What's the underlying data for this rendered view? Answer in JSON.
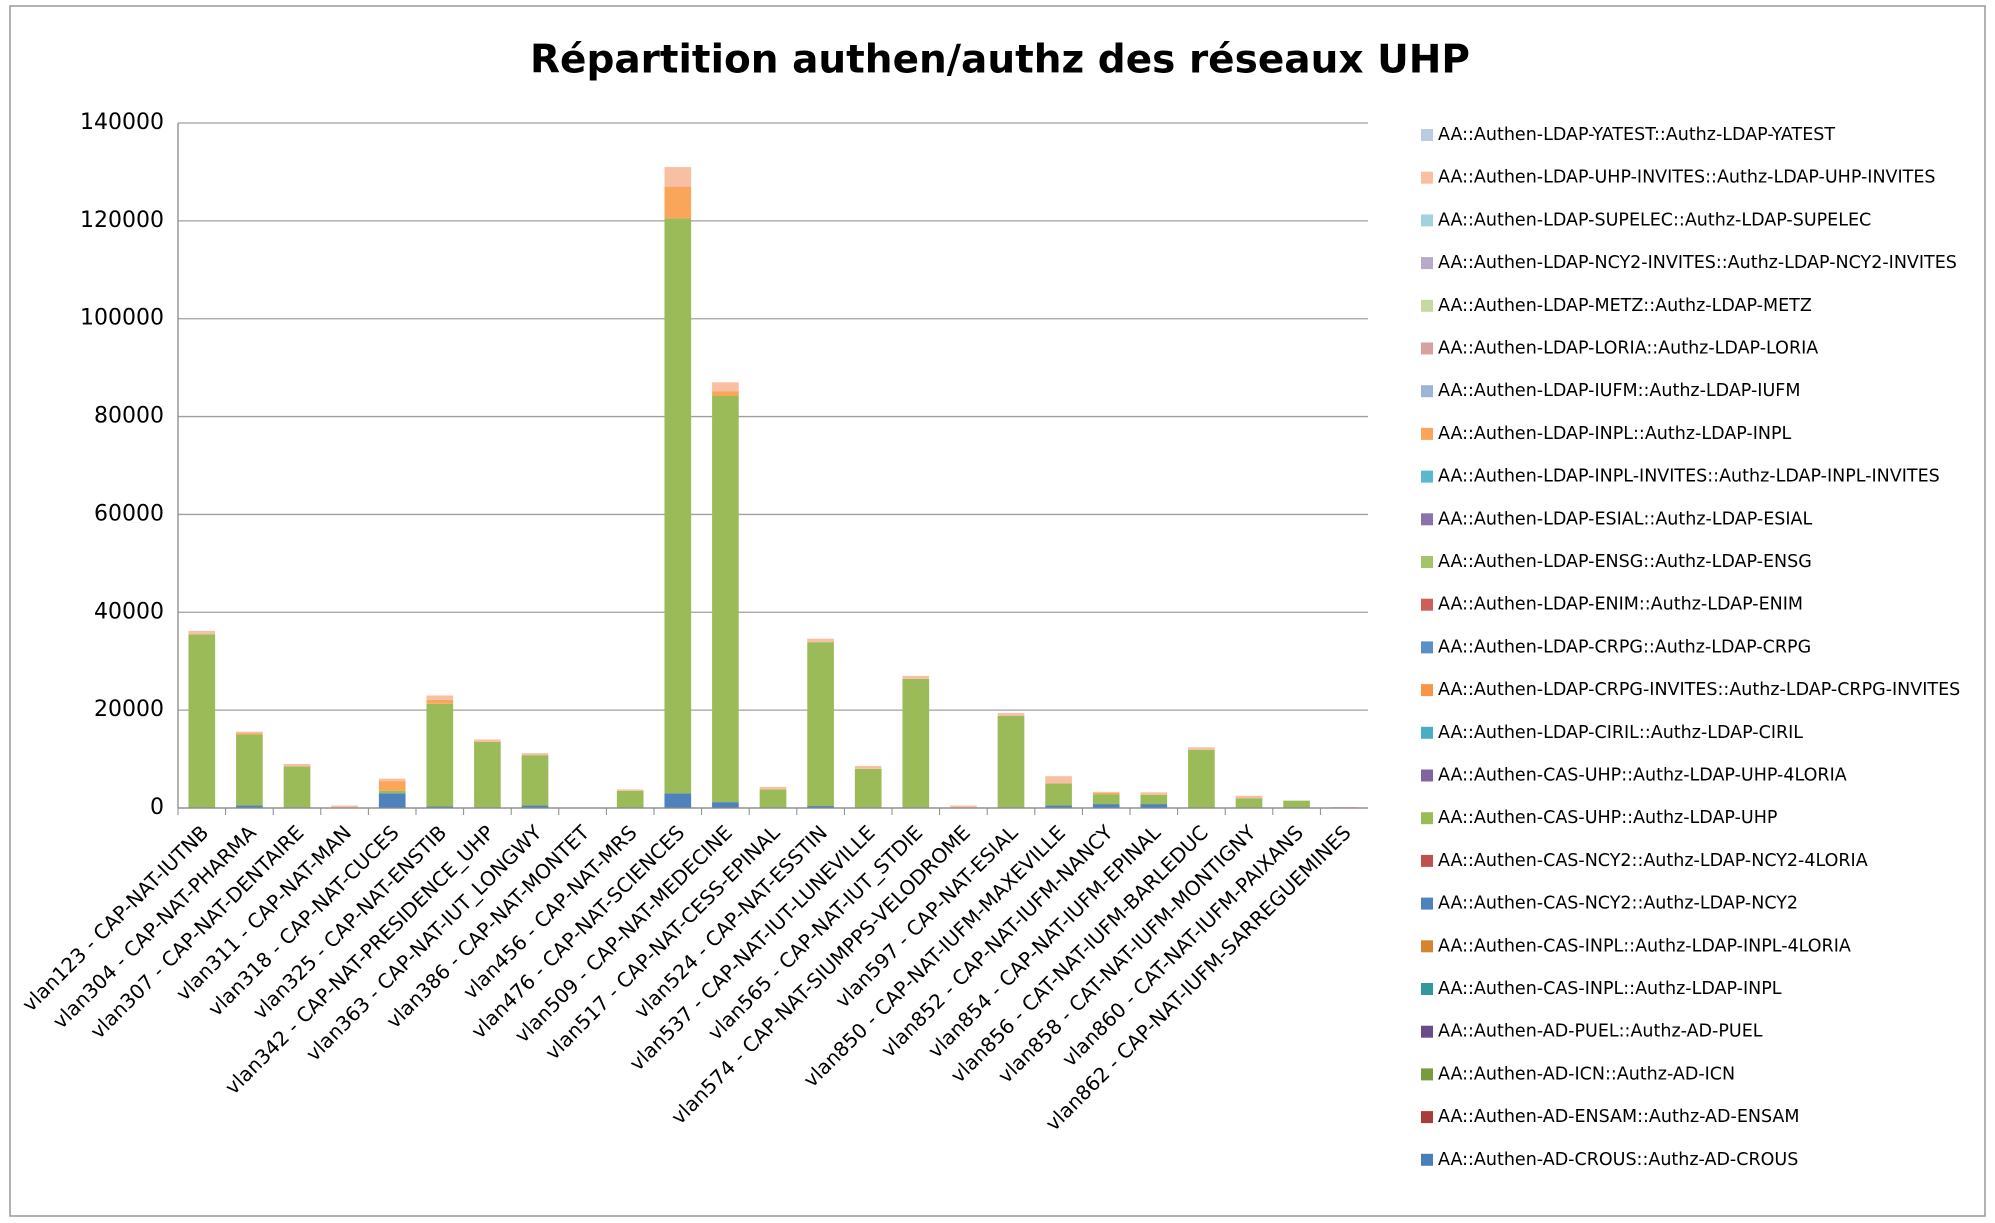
{
  "chart_data": {
    "type": "stacked_bar",
    "title": "Répartition authen/authz des réseaux UHP",
    "categories": [
      "vlan123 - CAP-NAT-IUTNB",
      "vlan304 - CAP-NAT-PHARMA",
      "vlan307 - CAP-NAT-DENTAIRE",
      "vlan311 - CAP-NAT-MAN",
      "vlan318 - CAP-NAT-CUCES",
      "vlan325 - CAP-NAT-ENSTIB",
      "vlan342 - CAP-NAT-PRESIDENCE_UHP",
      "vlan363 - CAP-NAT-IUT_LONGWY",
      "vlan386 - CAP-NAT-MONTET",
      "vlan456 - CAP-NAT-MRS",
      "vlan476 - CAP-NAT-SCIENCES",
      "vlan509 - CAP-NAT-MEDECINE",
      "vlan517 - CAP-NAT-CESS-EPINAL",
      "vlan524 - CAP-NAT-ESSTIN",
      "vlan537 - CAP-NAT-IUT-LUNEVILLE",
      "vlan565 - CAP-NAT-IUT_STDIE",
      "vlan574 - CAP-NAT-SIUMPPS-VELODROME",
      "vlan597 - CAP-NAT-ESIAL",
      "vlan850 - CAP-NAT-IUFM-MAXEVILLE",
      "vlan852 - CAP-NAT-IUFM-NANCY",
      "vlan854 - CAP-NAT-IUFM-EPINAL",
      "vlan856 - CAT-NAT-IUFM-BARLEDUC",
      "vlan858 - CAT-NAT-IUFM-MONTIGNY",
      "vlan860 - CAT-NAT-IUFM-PAIXANS",
      "vlan862 - CAP-NAT-IUFM-SARREGUEMINES"
    ],
    "ylim": [
      0,
      140000
    ],
    "yticks": [
      0,
      20000,
      40000,
      60000,
      80000,
      100000,
      120000,
      140000
    ],
    "grid": true,
    "series": [
      {
        "name": "AA::Authen-AD-CROUS::Authz-AD-CROUS",
        "color": "#4a7ebb",
        "values": [
          0,
          0,
          0,
          0,
          0,
          0,
          0,
          0,
          0,
          0,
          0,
          0,
          0,
          0,
          0,
          0,
          0,
          0,
          0,
          0,
          0,
          0,
          0,
          0,
          0
        ]
      },
      {
        "name": "AA::Authen-AD-ENSAM::Authz-AD-ENSAM",
        "color": "#a83c3a",
        "values": [
          0,
          0,
          0,
          0,
          0,
          0,
          0,
          0,
          0,
          0,
          0,
          0,
          0,
          0,
          0,
          0,
          0,
          0,
          0,
          0,
          0,
          0,
          0,
          0,
          0
        ]
      },
      {
        "name": "AA::Authen-AD-ICN::Authz-AD-ICN",
        "color": "#7a9a3e",
        "values": [
          0,
          0,
          0,
          0,
          0,
          0,
          0,
          0,
          0,
          0,
          0,
          0,
          0,
          0,
          0,
          0,
          0,
          0,
          0,
          0,
          0,
          0,
          0,
          0,
          0
        ]
      },
      {
        "name": "AA::Authen-AD-PUEL::Authz-AD-PUEL",
        "color": "#6a4c8c",
        "values": [
          0,
          0,
          0,
          0,
          0,
          0,
          0,
          0,
          0,
          0,
          0,
          0,
          0,
          0,
          0,
          0,
          0,
          0,
          0,
          0,
          0,
          0,
          0,
          0,
          0
        ]
      },
      {
        "name": "AA::Authen-CAS-INPL::Authz-LDAP-INPL",
        "color": "#36969e",
        "values": [
          0,
          0,
          0,
          0,
          0,
          0,
          0,
          0,
          0,
          0,
          0,
          0,
          0,
          0,
          0,
          0,
          0,
          0,
          0,
          0,
          0,
          0,
          0,
          0,
          0
        ]
      },
      {
        "name": "AA::Authen-CAS-INPL::Authz-LDAP-INPL-4LORIA",
        "color": "#d58532",
        "values": [
          0,
          0,
          0,
          0,
          0,
          0,
          0,
          0,
          0,
          0,
          0,
          0,
          0,
          0,
          0,
          0,
          0,
          0,
          0,
          0,
          0,
          0,
          0,
          0,
          0
        ]
      },
      {
        "name": "AA::Authen-CAS-NCY2::Authz-LDAP-NCY2",
        "color": "#4f81bd",
        "values": [
          0,
          500,
          0,
          0,
          3000,
          300,
          0,
          500,
          0,
          0,
          3000,
          1200,
          0,
          400,
          0,
          0,
          0,
          0,
          500,
          800,
          800,
          0,
          0,
          0,
          0
        ]
      },
      {
        "name": "AA::Authen-CAS-NCY2::Authz-LDAP-NCY2-4LORIA",
        "color": "#c0504d",
        "values": [
          0,
          0,
          0,
          0,
          0,
          0,
          0,
          0,
          0,
          0,
          0,
          0,
          0,
          0,
          0,
          0,
          0,
          0,
          0,
          0,
          0,
          0,
          0,
          0,
          0
        ]
      },
      {
        "name": "AA::Authen-CAS-UHP::Authz-LDAP-UHP",
        "color": "#9bbb59",
        "values": [
          35500,
          14500,
          8500,
          0,
          500,
          21000,
          13500,
          10300,
          0,
          3500,
          117500,
          83000,
          3800,
          33500,
          8000,
          26400,
          0,
          18800,
          4500,
          2000,
          1900,
          11900,
          2000,
          1500,
          0
        ]
      },
      {
        "name": "AA::Authen-CAS-UHP::Authz-LDAP-UHP-4LORIA",
        "color": "#8064a2",
        "values": [
          0,
          0,
          0,
          0,
          0,
          0,
          0,
          0,
          0,
          0,
          0,
          0,
          0,
          0,
          0,
          0,
          0,
          0,
          0,
          0,
          0,
          0,
          0,
          0,
          0
        ]
      },
      {
        "name": "AA::Authen-LDAP-CIRIL::Authz-LDAP-CIRIL",
        "color": "#4bacc6",
        "values": [
          0,
          0,
          0,
          0,
          0,
          0,
          0,
          0,
          0,
          0,
          0,
          0,
          0,
          0,
          0,
          0,
          0,
          0,
          0,
          0,
          0,
          0,
          0,
          0,
          0
        ]
      },
      {
        "name": "AA::Authen-LDAP-CRPG-INVITES::Authz-LDAP-CRPG-INVITES",
        "color": "#f79646",
        "values": [
          0,
          0,
          0,
          0,
          0,
          0,
          0,
          0,
          0,
          0,
          0,
          0,
          0,
          0,
          0,
          0,
          0,
          0,
          0,
          0,
          0,
          0,
          0,
          0,
          0
        ]
      },
      {
        "name": "AA::Authen-LDAP-CRPG::Authz-LDAP-CRPG",
        "color": "#5b8fc9",
        "values": [
          0,
          0,
          0,
          0,
          0,
          0,
          0,
          0,
          0,
          0,
          0,
          0,
          0,
          0,
          0,
          0,
          0,
          0,
          0,
          0,
          0,
          0,
          0,
          0,
          0
        ]
      },
      {
        "name": "AA::Authen-LDAP-ENIM::Authz-LDAP-ENIM",
        "color": "#cd5e5b",
        "values": [
          0,
          0,
          0,
          0,
          0,
          0,
          0,
          0,
          0,
          0,
          0,
          0,
          0,
          0,
          0,
          0,
          0,
          0,
          0,
          0,
          0,
          0,
          0,
          0,
          0
        ]
      },
      {
        "name": "AA::Authen-LDAP-ENSG::Authz-LDAP-ENSG",
        "color": "#a5c46a",
        "values": [
          0,
          0,
          0,
          0,
          0,
          0,
          0,
          0,
          0,
          0,
          0,
          0,
          0,
          0,
          0,
          0,
          0,
          0,
          0,
          0,
          0,
          0,
          0,
          0,
          0
        ]
      },
      {
        "name": "AA::Authen-LDAP-ESIAL::Authz-LDAP-ESIAL",
        "color": "#8c72ad",
        "values": [
          0,
          0,
          0,
          0,
          0,
          0,
          0,
          0,
          0,
          0,
          0,
          0,
          0,
          0,
          0,
          0,
          0,
          0,
          0,
          0,
          0,
          0,
          0,
          0,
          0
        ]
      },
      {
        "name": "AA::Authen-LDAP-INPL-INVITES::Authz-LDAP-INPL-INVITES",
        "color": "#5bb7cf",
        "values": [
          0,
          0,
          0,
          0,
          0,
          0,
          0,
          0,
          0,
          0,
          0,
          0,
          0,
          0,
          0,
          0,
          0,
          0,
          0,
          0,
          0,
          0,
          0,
          0,
          0
        ]
      },
      {
        "name": "AA::Authen-LDAP-INPL::Authz-LDAP-INPL",
        "color": "#f9a65a",
        "values": [
          0,
          300,
          0,
          0,
          2000,
          800,
          0,
          0,
          0,
          0,
          6500,
          1000,
          0,
          0,
          0,
          0,
          0,
          0,
          0,
          300,
          0,
          0,
          0,
          0,
          0
        ]
      },
      {
        "name": "AA::Authen-LDAP-IUFM::Authz-LDAP-IUFM",
        "color": "#9cb4d8",
        "values": [
          0,
          0,
          0,
          0,
          0,
          0,
          0,
          0,
          0,
          0,
          0,
          0,
          0,
          0,
          0,
          0,
          0,
          0,
          0,
          0,
          0,
          0,
          0,
          0,
          0
        ]
      },
      {
        "name": "AA::Authen-LDAP-LORIA::Authz-LDAP-LORIA",
        "color": "#d9a0a0",
        "values": [
          0,
          0,
          0,
          0,
          0,
          0,
          0,
          0,
          0,
          0,
          0,
          0,
          0,
          0,
          0,
          0,
          0,
          0,
          0,
          0,
          0,
          0,
          0,
          0,
          0
        ]
      },
      {
        "name": "AA::Authen-LDAP-METZ::Authz-LDAP-METZ",
        "color": "#c6d9a2",
        "values": [
          0,
          0,
          0,
          0,
          0,
          0,
          0,
          0,
          0,
          0,
          0,
          0,
          0,
          0,
          0,
          0,
          0,
          0,
          0,
          0,
          0,
          0,
          0,
          0,
          0
        ]
      },
      {
        "name": "AA::Authen-LDAP-NCY2-INVITES::Authz-LDAP-NCY2-INVITES",
        "color": "#b9a9cc",
        "values": [
          0,
          0,
          0,
          0,
          0,
          0,
          0,
          0,
          0,
          0,
          0,
          0,
          0,
          0,
          0,
          0,
          0,
          0,
          0,
          0,
          0,
          0,
          0,
          0,
          0
        ]
      },
      {
        "name": "AA::Authen-LDAP-SUPELEC::Authz-LDAP-SUPELEC",
        "color": "#a3d2de",
        "values": [
          0,
          0,
          0,
          0,
          0,
          0,
          0,
          0,
          0,
          0,
          0,
          0,
          0,
          0,
          0,
          0,
          0,
          0,
          0,
          0,
          0,
          0,
          0,
          0,
          0
        ]
      },
      {
        "name": "AA::Authen-LDAP-UHP-INVITES::Authz-LDAP-UHP-INVITES",
        "color": "#f9bfa3",
        "values": [
          700,
          300,
          500,
          500,
          500,
          900,
          500,
          400,
          0,
          300,
          4000,
          1800,
          500,
          700,
          600,
          600,
          500,
          600,
          1500,
          200,
          500,
          500,
          500,
          0,
          200
        ]
      },
      {
        "name": "AA::Authen-LDAP-YATEST::Authz-LDAP-YATEST",
        "color": "#bccbe4",
        "values": [
          0,
          0,
          0,
          0,
          0,
          0,
          0,
          0,
          0,
          0,
          0,
          0,
          0,
          0,
          0,
          0,
          0,
          0,
          0,
          0,
          0,
          0,
          0,
          0,
          0
        ]
      }
    ]
  }
}
